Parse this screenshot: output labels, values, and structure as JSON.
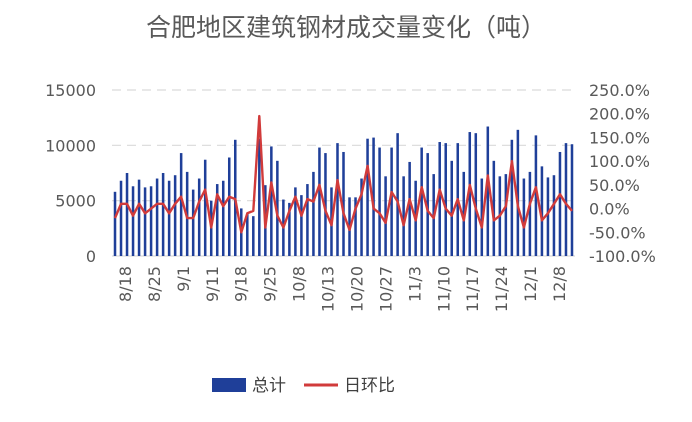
{
  "chart_data": {
    "type": "bar+line",
    "title": "合肥地区建筑钢材成交量变化（吨）",
    "x_tick_labels": [
      "8/18",
      "8/25",
      "9/1",
      "9/11",
      "9/18",
      "9/25",
      "10/8",
      "10/13",
      "10/20",
      "10/27",
      "11/3",
      "11/10",
      "11/17",
      "11/24",
      "12/1",
      "12/8"
    ],
    "y_left": {
      "ticks": [
        "0",
        "5000",
        "10000",
        "15000"
      ],
      "ylim": [
        0,
        15000
      ]
    },
    "y_right": {
      "ticks": [
        "-100.0%",
        "-50.0%",
        "0.0%",
        "50.0%",
        "100.0%",
        "150.0%",
        "200.0%",
        "250.0%"
      ],
      "ylim": [
        -100,
        250
      ]
    },
    "grid": "horizontal dashed",
    "legend_position": "bottom",
    "colors": {
      "bar": "#1f3f99",
      "line": "#d13b3b",
      "grid": "#d9d9d9",
      "text": "#595959"
    },
    "series": [
      {
        "name": "总计",
        "kind": "bar",
        "axis": "left",
        "values": [
          5800,
          6800,
          7500,
          6300,
          6900,
          6200,
          6300,
          7000,
          7500,
          6800,
          7300,
          9300,
          7600,
          6000,
          7000,
          8700,
          5000,
          6500,
          6800,
          8900,
          10500,
          4300,
          3800,
          3600,
          10600,
          6400,
          9900,
          8600,
          5100,
          4800,
          6200,
          5500,
          6500,
          7600,
          9800,
          9300,
          6200,
          10200,
          9400,
          5300,
          5300,
          7000,
          10600,
          10700,
          9800,
          7200,
          9800,
          11100,
          7200,
          8500,
          6800,
          9800,
          9300,
          7400,
          10300,
          10200,
          8600,
          10200,
          7600,
          11200,
          11100,
          7000,
          11700,
          8600,
          7200,
          7400,
          10500,
          11400,
          7000,
          7600,
          10900,
          8100,
          7100,
          7300,
          9400,
          10200,
          10100
        ]
      },
      {
        "name": "日环比",
        "kind": "line",
        "axis": "right",
        "values": [
          -20,
          10,
          10,
          -15,
          10,
          -10,
          0,
          10,
          10,
          -10,
          10,
          25,
          -20,
          -20,
          15,
          40,
          -40,
          30,
          5,
          25,
          20,
          -50,
          -10,
          -5,
          195,
          -40,
          55,
          -15,
          -40,
          -5,
          25,
          -15,
          20,
          15,
          50,
          -5,
          -35,
          60,
          -10,
          -45,
          0,
          30,
          90,
          0,
          -10,
          -30,
          35,
          15,
          -35,
          20,
          -25,
          45,
          -5,
          -20,
          40,
          0,
          -15,
          20,
          -25,
          50,
          0,
          -40,
          70,
          -25,
          -15,
          5,
          100,
          5,
          -40,
          10,
          45,
          -25,
          -10,
          10,
          30,
          10,
          -5
        ]
      }
    ]
  }
}
